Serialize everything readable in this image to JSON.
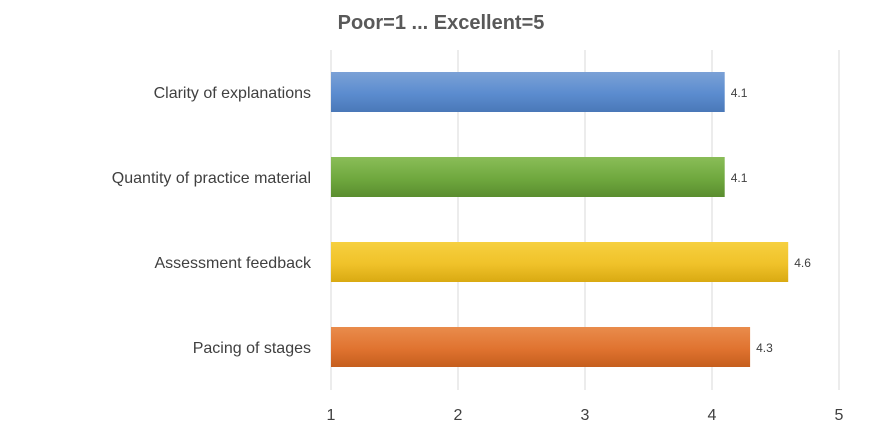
{
  "chart_data": {
    "type": "bar",
    "orientation": "horizontal",
    "title": "Poor=1 ... Excellent=5",
    "categories": [
      "Clarity of explanations",
      "Quantity of practice material",
      "Assessment feedback",
      "Pacing of stages"
    ],
    "values": [
      4.1,
      4.1,
      4.6,
      4.3
    ],
    "data_labels": [
      "4.1",
      "4.1",
      "4.6",
      "4.3"
    ],
    "xlim": [
      1,
      5
    ],
    "xticks": [
      1,
      2,
      3,
      4,
      5
    ],
    "xtick_labels": [
      "1",
      "2",
      "3",
      "4",
      "5"
    ],
    "grid": "vertical",
    "legend": "none",
    "colors": [
      {
        "light": "#7ba1d6",
        "base": "#5b8ccf",
        "dark": "#4a78b8"
      },
      {
        "light": "#8abd58",
        "base": "#6fa83e",
        "dark": "#5a8d2f"
      },
      {
        "light": "#f6d040",
        "base": "#f0c22a",
        "dark": "#d9aa12"
      },
      {
        "light": "#e98c4c",
        "base": "#e07330",
        "dark": "#c55e1e"
      }
    ],
    "gridline_color": "#d9d9d9"
  }
}
